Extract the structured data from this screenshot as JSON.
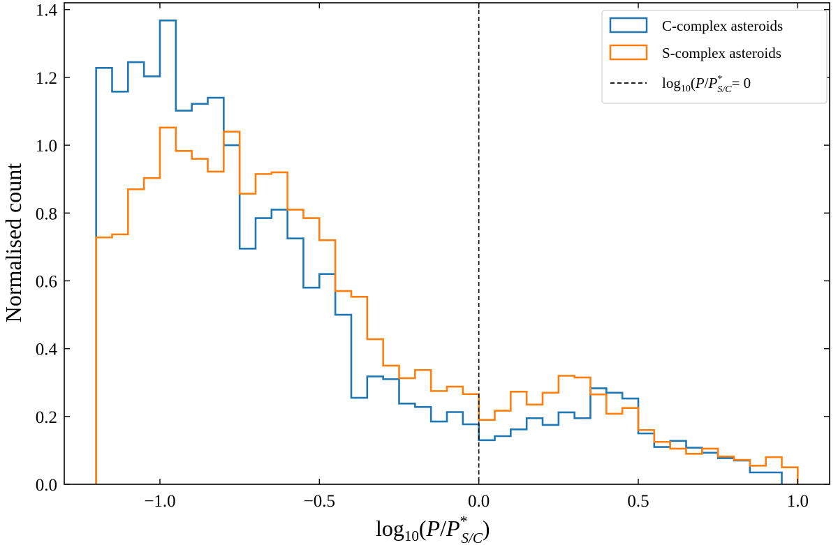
{
  "chart_data": {
    "type": "histogram",
    "title": "",
    "xlabel_base": "log",
    "xlabel_sub": "10",
    "xlabel_P": "P",
    "xlabel_Pstar": "P",
    "xlabel_star": "*",
    "xlabel_sc": "S/C",
    "ylabel": "Normalised count",
    "xlim": [
      -1.3,
      1.1
    ],
    "ylim": [
      0,
      1.42
    ],
    "xticks": [
      -1.0,
      -0.5,
      0.0,
      0.5,
      1.0
    ],
    "xtick_labels": [
      "−1.0",
      "−0.5",
      "0.0",
      "0.5",
      "1.0"
    ],
    "yticks": [
      0.0,
      0.2,
      0.4,
      0.6,
      0.8,
      1.0,
      1.2,
      1.4
    ],
    "ytick_labels": [
      "0.0",
      "0.2",
      "0.4",
      "0.6",
      "0.8",
      "1.0",
      "1.2",
      "1.4"
    ],
    "bin_edges": [
      -1.2,
      -1.15,
      -1.1,
      -1.05,
      -1.0,
      -0.95,
      -0.9,
      -0.85,
      -0.8,
      -0.75,
      -0.7,
      -0.65,
      -0.6,
      -0.55,
      -0.5,
      -0.45,
      -0.4,
      -0.35,
      -0.3,
      -0.25,
      -0.2,
      -0.15,
      -0.1,
      -0.05,
      0.0,
      0.05,
      0.1,
      0.15,
      0.2,
      0.25,
      0.3,
      0.35,
      0.4,
      0.45,
      0.5,
      0.55,
      0.6,
      0.65,
      0.7,
      0.75,
      0.8,
      0.85,
      0.9,
      0.95,
      1.0
    ],
    "series": [
      {
        "name": "C-complex asteroids",
        "color": "#1f77b4",
        "edge_start": 0,
        "values": [
          1.228,
          1.158,
          1.245,
          1.203,
          1.368,
          1.102,
          1.122,
          1.14,
          1.0,
          0.695,
          0.785,
          0.81,
          0.725,
          0.58,
          0.62,
          0.5,
          0.255,
          0.318,
          0.31,
          0.238,
          0.228,
          0.185,
          0.213,
          0.177,
          0.13,
          0.142,
          0.162,
          0.195,
          0.175,
          0.212,
          0.195,
          0.283,
          0.27,
          0.253,
          0.15,
          0.11,
          0.128,
          0.108,
          0.093,
          0.077,
          0.07,
          0.035,
          0.035
        ]
      },
      {
        "name": "S-complex asteroids",
        "color": "#ff7f0e",
        "edge_start": 0,
        "values": [
          0.728,
          0.737,
          0.87,
          0.903,
          1.052,
          0.983,
          0.96,
          0.922,
          1.04,
          0.857,
          0.915,
          0.92,
          0.81,
          0.785,
          0.72,
          0.57,
          0.553,
          0.428,
          0.35,
          0.313,
          0.337,
          0.275,
          0.288,
          0.266,
          0.19,
          0.217,
          0.273,
          0.235,
          0.27,
          0.32,
          0.315,
          0.265,
          0.208,
          0.225,
          0.16,
          0.125,
          0.105,
          0.09,
          0.105,
          0.082,
          0.072,
          0.055,
          0.08,
          0.05
        ]
      }
    ],
    "reference_line": {
      "x": 0.0,
      "style": "dashed",
      "label_base": "log",
      "label_sub": "10",
      "label_P": "P",
      "label_Pstar": "P",
      "label_star": "*",
      "label_sc": "S/C",
      "label_eq": "= 0"
    },
    "legend_position": "top-right"
  }
}
